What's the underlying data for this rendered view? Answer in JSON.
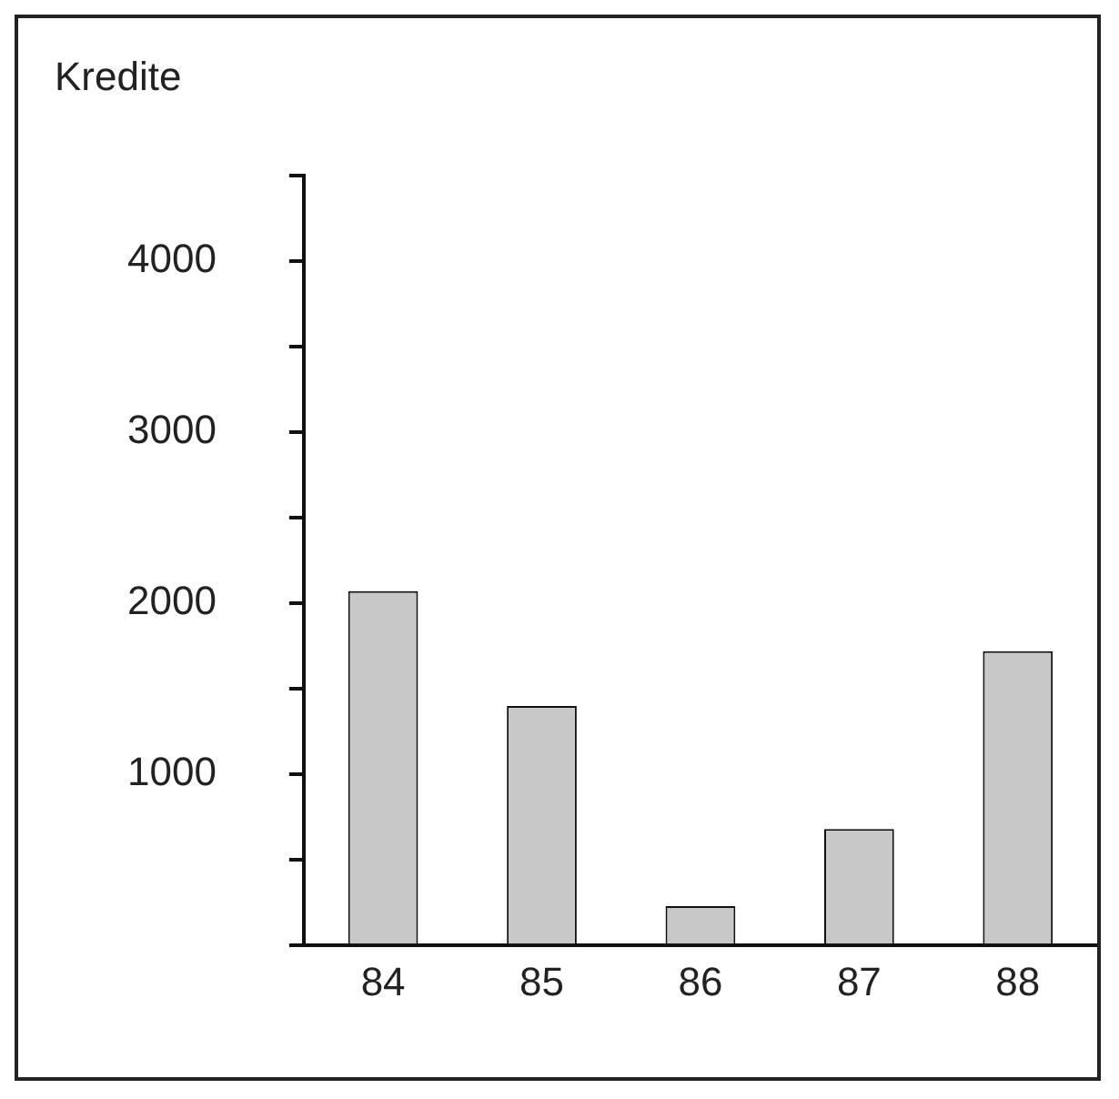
{
  "chart_data": {
    "type": "bar",
    "title": "Kredite",
    "categories": [
      "84",
      "85",
      "86",
      "87",
      "88"
    ],
    "values": [
      2070,
      1400,
      230,
      680,
      1720
    ],
    "color": "#c8c8c8",
    "ylim": [
      0,
      4500
    ],
    "yticks": [
      {
        "value": 0,
        "label": null
      },
      {
        "value": 500,
        "label": null
      },
      1000,
      {
        "value": 1500,
        "label": null
      },
      2000,
      {
        "value": 2500,
        "label": null
      },
      3000,
      {
        "value": 3500,
        "label": null
      },
      4000,
      {
        "value": 4500,
        "label": null
      }
    ],
    "grid": false,
    "legend": false
  }
}
